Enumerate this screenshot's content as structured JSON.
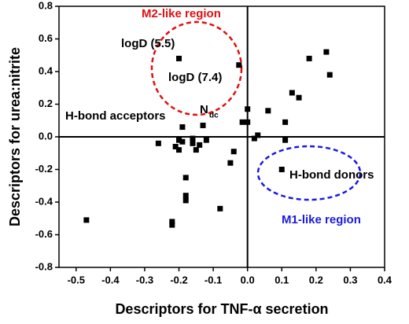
{
  "chart_data": {
    "type": "scatter",
    "x_label": "Descriptors for TNF-α secretion",
    "y_label": "Descriptors for urea:nitrite",
    "xlim": [
      -0.55,
      0.4
    ],
    "ylim": [
      -0.8,
      0.8
    ],
    "xticks": [
      -0.5,
      -0.4,
      -0.3,
      -0.2,
      -0.1,
      {
        "value": 0,
        "label": "0.0"
      },
      0.1,
      0.2,
      0.3,
      0.4
    ],
    "yticks": [
      -0.8,
      -0.6,
      -0.4,
      -0.2,
      {
        "value": 0,
        "label": "0.0"
      },
      0.2,
      0.4,
      0.6,
      0.8
    ],
    "color": "#000000",
    "x": [
      0.23,
      0.18,
      0.24,
      0.13,
      0.15,
      0.06,
      0.11,
      0.11,
      0.1,
      -0.025,
      -0.2,
      0.0,
      -0.015,
      0.0,
      0.02,
      0.03,
      -0.04,
      -0.05,
      -0.08,
      -0.19,
      -0.13,
      -0.26,
      -0.21,
      -0.2,
      -0.2,
      -0.19,
      -0.16,
      -0.15,
      -0.14,
      -0.18,
      -0.18,
      -0.18,
      -0.22,
      -0.22,
      -0.47,
      -0.12,
      -0.16
    ],
    "y": [
      0.52,
      0.48,
      0.38,
      0.27,
      0.24,
      0.16,
      0.09,
      -0.02,
      -0.2,
      0.44,
      0.48,
      0.17,
      0.09,
      0.09,
      -0.01,
      0.01,
      -0.09,
      -0.16,
      -0.44,
      0.06,
      0.07,
      -0.04,
      -0.06,
      -0.08,
      -0.02,
      -0.03,
      -0.04,
      -0.08,
      -0.05,
      -0.25,
      -0.36,
      -0.39,
      -0.52,
      -0.54,
      -0.51,
      -0.02,
      -0.01
    ],
    "annotations": [
      "M2-like region",
      "logD (5.5)",
      "logD (7.4)",
      "H-bond acceptors",
      "H-bond donors",
      "M1-like region"
    ],
    "ndc": {
      "main": "N",
      "sub": "dc"
    }
  }
}
